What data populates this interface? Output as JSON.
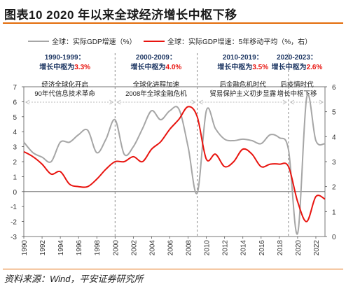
{
  "figure": {
    "title": "图表10    2020 年以来全球经济增长中枢下移",
    "source": "资料来源：Wind，平安证券研究所"
  },
  "colors": {
    "gdp_line": "#a6a6a6",
    "ma_line": "#e8140f",
    "period_highlight": "#e8140f",
    "divider": "#8c8c8c",
    "axis_text": "#333333"
  },
  "chart_data": {
    "type": "line",
    "title": "",
    "xlabel": "",
    "ylabel": "",
    "xlim": [
      1990,
      2023
    ],
    "ylim": [
      -3,
      7
    ],
    "y2lim": [
      0,
      6
    ],
    "x_ticks": [
      "1990",
      "1992",
      "1994",
      "1996",
      "1998",
      "2000",
      "2002",
      "2004",
      "2006",
      "2008",
      "2010",
      "2012",
      "2014",
      "2016",
      "2018",
      "2020",
      "2022"
    ],
    "y_ticks": [
      "-3",
      "-2",
      "-1",
      "0",
      "1",
      "2",
      "3",
      "4",
      "5",
      "6",
      "7"
    ],
    "y2_ticks": [
      "0",
      "1",
      "2",
      "3",
      "4",
      "5",
      "6"
    ],
    "legend_position": "top",
    "series": [
      {
        "name": "全球：实际GDP增速（%）",
        "axis": "left",
        "x": [
          1990,
          1991,
          1992,
          1993,
          1994,
          1995,
          1996,
          1997,
          1998,
          1999,
          2000,
          2001,
          2002,
          2003,
          2004,
          2005,
          2006,
          2007,
          2008,
          2009,
          2010,
          2011,
          2012,
          2013,
          2014,
          2015,
          2016,
          2017,
          2018,
          2019,
          2020,
          2021,
          2022,
          2023
        ],
        "values": [
          3.3,
          2.6,
          2.3,
          2.0,
          3.3,
          3.3,
          3.8,
          4.1,
          2.6,
          3.5,
          4.8,
          2.5,
          3.0,
          4.2,
          5.4,
          4.8,
          5.4,
          5.5,
          3.0,
          -0.1,
          5.4,
          4.2,
          3.5,
          3.4,
          3.5,
          3.4,
          3.2,
          3.8,
          3.6,
          2.8,
          -2.8,
          6.3,
          3.4,
          3.2
        ]
      },
      {
        "name": "全球：实际GDP增速：5年移动平均（%，右）",
        "axis": "right",
        "x": [
          1990,
          1991,
          1992,
          1993,
          1994,
          1995,
          1996,
          1997,
          1998,
          1999,
          2000,
          2001,
          2002,
          2003,
          2004,
          2005,
          2006,
          2007,
          2008,
          2009,
          2010,
          2011,
          2012,
          2013,
          2014,
          2015,
          2016,
          2017,
          2018,
          2019,
          2020,
          2021,
          2022,
          2023
        ],
        "values": [
          3.4,
          3.2,
          2.9,
          2.5,
          2.6,
          2.1,
          2.0,
          2.0,
          2.3,
          2.7,
          3.0,
          3.0,
          3.2,
          3.0,
          3.5,
          3.8,
          4.3,
          4.7,
          5.2,
          4.8,
          3.1,
          3.3,
          2.8,
          3.0,
          3.5,
          3.3,
          2.8,
          2.9,
          2.9,
          2.8,
          1.4,
          0.6,
          1.6,
          1.5
        ]
      }
    ],
    "period_dividers": [
      2000,
      2009,
      2019
    ],
    "periods": [
      {
        "range": "1990-1999：",
        "center_label": "增长中枢为",
        "center_value": "3.3%",
        "note_line1": "经济全球化开启",
        "note_line2": "90年代信息技术革命"
      },
      {
        "range": "2000-2009：",
        "center_label": "增长中枢为",
        "center_value": "4.0%",
        "note_line1": "全球化进程加速",
        "note_line2": "2008年全球金融危机"
      },
      {
        "range": "2010-2019：",
        "center_label": "增长中枢为",
        "center_value": "3.5%",
        "note_line1": "后金融危机时代",
        "note_line2": "贸易保护主义初步显露"
      },
      {
        "range": "2020-2023：",
        "center_label": "增长中枢为",
        "center_value": "2.6%",
        "note_line1": "后疫情时代",
        "note_line2": "增长中枢下移"
      }
    ]
  }
}
